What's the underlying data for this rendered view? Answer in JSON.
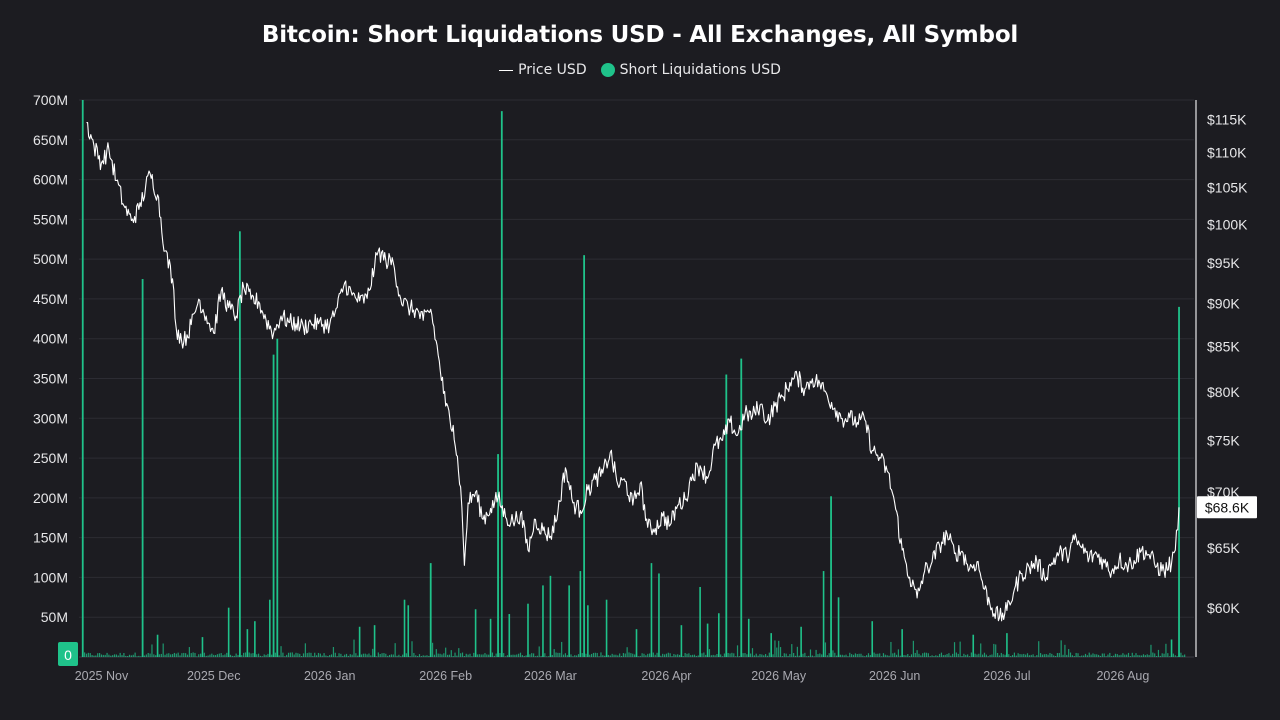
{
  "chart_data": {
    "type": "bar",
    "title": "Bitcoin: Short Liquidations USD - All Exchanges, All Symbol",
    "legend_placement": "top-center",
    "grid": true,
    "legend": [
      {
        "label": "Price USD",
        "marker": "line",
        "color": "#ffffff"
      },
      {
        "label": "Short Liquidations USD",
        "marker": "dot",
        "color": "#1fc28a"
      }
    ],
    "colors": {
      "background": "#1c1c21",
      "grid": "#2c2c33",
      "bars": "#1fc28a",
      "price_line": "#ffffff",
      "current_price_box": "#ffffff",
      "zero_box": "#1fc28a"
    },
    "y_left": {
      "range": [
        0,
        700000000
      ],
      "tick_values": [
        0,
        50000000,
        100000000,
        150000000,
        200000000,
        250000000,
        300000000,
        350000000,
        400000000,
        450000000,
        500000000,
        550000000,
        600000000,
        650000000,
        700000000
      ],
      "tick_labels": [
        "0",
        "50M",
        "100M",
        "150M",
        "200M",
        "250M",
        "300M",
        "350M",
        "400M",
        "450M",
        "500M",
        "550M",
        "600M",
        "650M",
        "700M"
      ]
    },
    "y_right": {
      "scale": "log",
      "range": [
        56200,
        118000
      ],
      "tick_values": [
        60000,
        65000,
        70000,
        75000,
        80000,
        85000,
        90000,
        95000,
        100000,
        105000,
        110000,
        115000
      ],
      "tick_labels": [
        "$60K",
        "$65K",
        "$70K",
        "$75K",
        "$80K",
        "$85K",
        "$90K",
        "$95K",
        "$100K",
        "$105K",
        "$110K",
        "$115K"
      ]
    },
    "current_price_label": "$68.6K",
    "x_axis": {
      "type": "date",
      "range": [
        "2025-10-26",
        "2026-08-20"
      ],
      "ticks": [
        {
          "date": "2025-11-01",
          "label": "2025 Nov"
        },
        {
          "date": "2025-12-01",
          "label": "2025 Dec"
        },
        {
          "date": "2026-01-01",
          "label": "2026 Jan"
        },
        {
          "date": "2026-02-01",
          "label": "2026 Feb"
        },
        {
          "date": "2026-03-01",
          "label": "2026 Mar"
        },
        {
          "date": "2026-04-01",
          "label": "2026 Apr"
        },
        {
          "date": "2026-05-01",
          "label": "2026 May"
        },
        {
          "date": "2026-06-01",
          "label": "2026 Jun"
        },
        {
          "date": "2026-07-01",
          "label": "2026 Jul"
        },
        {
          "date": "2026-08-01",
          "label": "2026 Aug"
        }
      ]
    },
    "price_series": {
      "name": "Price USD",
      "points": [
        [
          "2025-10-28",
          114500
        ],
        [
          "2025-10-30",
          111000
        ],
        [
          "2025-11-01",
          108500
        ],
        [
          "2025-11-03",
          110500
        ],
        [
          "2025-11-05",
          106000
        ],
        [
          "2025-11-07",
          102500
        ],
        [
          "2025-11-09",
          100500
        ],
        [
          "2025-11-11",
          102000
        ],
        [
          "2025-11-14",
          107000
        ],
        [
          "2025-11-16",
          104000
        ],
        [
          "2025-11-18",
          96500
        ],
        [
          "2025-11-20",
          93000
        ],
        [
          "2025-11-21",
          87000
        ],
        [
          "2025-11-23",
          85500
        ],
        [
          "2025-11-25",
          87500
        ],
        [
          "2025-11-27",
          90500
        ],
        [
          "2025-11-29",
          88500
        ],
        [
          "2025-12-01",
          86500
        ],
        [
          "2025-12-03",
          91500
        ],
        [
          "2025-12-05",
          89500
        ],
        [
          "2025-12-07",
          88500
        ],
        [
          "2025-12-09",
          92000
        ],
        [
          "2025-12-11",
          90500
        ],
        [
          "2025-12-13",
          90200
        ],
        [
          "2025-12-15",
          88000
        ],
        [
          "2025-12-17",
          86500
        ],
        [
          "2025-12-19",
          88500
        ],
        [
          "2025-12-21",
          87800
        ],
        [
          "2025-12-23",
          87600
        ],
        [
          "2025-12-25",
          87200
        ],
        [
          "2025-12-27",
          87700
        ],
        [
          "2025-12-29",
          87600
        ],
        [
          "2026-01-01",
          87500
        ],
        [
          "2026-01-03",
          89500
        ],
        [
          "2026-01-05",
          92500
        ],
        [
          "2026-01-07",
          91000
        ],
        [
          "2026-01-09",
          90300
        ],
        [
          "2026-01-11",
          90600
        ],
        [
          "2026-01-13",
          94500
        ],
        [
          "2026-01-14",
          96500
        ],
        [
          "2026-01-16",
          95300
        ],
        [
          "2026-01-18",
          95000
        ],
        [
          "2026-01-20",
          90500
        ],
        [
          "2026-01-22",
          89500
        ],
        [
          "2026-01-24",
          89200
        ],
        [
          "2026-01-26",
          88000
        ],
        [
          "2026-01-28",
          89300
        ],
        [
          "2026-01-30",
          84000
        ],
        [
          "2026-02-01",
          78500
        ],
        [
          "2026-02-03",
          76500
        ],
        [
          "2026-02-05",
          70500
        ],
        [
          "2026-02-06",
          63500
        ],
        [
          "2026-02-07",
          69000
        ],
        [
          "2026-02-09",
          70000
        ],
        [
          "2026-02-11",
          67500
        ],
        [
          "2026-02-13",
          68500
        ],
        [
          "2026-02-15",
          69500
        ],
        [
          "2026-02-17",
          67700
        ],
        [
          "2026-02-19",
          67300
        ],
        [
          "2026-02-21",
          68000
        ],
        [
          "2026-02-23",
          64800
        ],
        [
          "2026-02-25",
          67500
        ],
        [
          "2026-02-27",
          66500
        ],
        [
          "2026-03-01",
          66000
        ],
        [
          "2026-03-03",
          68200
        ],
        [
          "2026-03-05",
          72300
        ],
        [
          "2026-03-07",
          69000
        ],
        [
          "2026-03-09",
          68300
        ],
        [
          "2026-03-11",
          70200
        ],
        [
          "2026-03-13",
          71200
        ],
        [
          "2026-03-15",
          71800
        ],
        [
          "2026-03-17",
          73800
        ],
        [
          "2026-03-19",
          70700
        ],
        [
          "2026-03-21",
          71000
        ],
        [
          "2026-03-23",
          68800
        ],
        [
          "2026-03-25",
          70800
        ],
        [
          "2026-03-27",
          66800
        ],
        [
          "2026-03-29",
          66700
        ],
        [
          "2026-03-31",
          67800
        ],
        [
          "2026-04-02",
          67000
        ],
        [
          "2026-04-04",
          68800
        ],
        [
          "2026-04-06",
          69300
        ],
        [
          "2026-04-08",
          71700
        ],
        [
          "2026-04-10",
          72500
        ],
        [
          "2026-04-12",
          71300
        ],
        [
          "2026-04-14",
          74500
        ],
        [
          "2026-04-16",
          75000
        ],
        [
          "2026-04-18",
          76800
        ],
        [
          "2026-04-20",
          75500
        ],
        [
          "2026-04-22",
          77700
        ],
        [
          "2026-04-24",
          77500
        ],
        [
          "2026-04-26",
          78600
        ],
        [
          "2026-04-28",
          77000
        ],
        [
          "2026-04-30",
          78500
        ],
        [
          "2026-05-02",
          79500
        ],
        [
          "2026-05-04",
          81000
        ],
        [
          "2026-05-06",
          81600
        ],
        [
          "2026-05-08",
          80300
        ],
        [
          "2026-05-10",
          81400
        ],
        [
          "2026-05-12",
          80900
        ],
        [
          "2026-05-14",
          79600
        ],
        [
          "2026-05-16",
          78300
        ],
        [
          "2026-05-18",
          77200
        ],
        [
          "2026-05-20",
          77300
        ],
        [
          "2026-05-22",
          76800
        ],
        [
          "2026-05-24",
          77100
        ],
        [
          "2026-05-26",
          74000
        ],
        [
          "2026-05-28",
          73300
        ],
        [
          "2026-05-30",
          72000
        ],
        [
          "2026-06-01",
          69000
        ],
        [
          "2026-06-03",
          64800
        ],
        [
          "2026-06-05",
          62500
        ],
        [
          "2026-06-07",
          60800
        ],
        [
          "2026-06-09",
          63000
        ],
        [
          "2026-06-11",
          63800
        ],
        [
          "2026-06-13",
          65200
        ],
        [
          "2026-06-15",
          66200
        ],
        [
          "2026-06-17",
          64500
        ],
        [
          "2026-06-19",
          64700
        ],
        [
          "2026-06-21",
          63200
        ],
        [
          "2026-06-23",
          63800
        ],
        [
          "2026-06-25",
          61500
        ],
        [
          "2026-06-27",
          60000
        ],
        [
          "2026-06-29",
          59200
        ],
        [
          "2026-07-01",
          59800
        ],
        [
          "2026-07-03",
          61500
        ],
        [
          "2026-07-05",
          62800
        ],
        [
          "2026-07-07",
          63300
        ],
        [
          "2026-07-09",
          63800
        ],
        [
          "2026-07-11",
          62500
        ],
        [
          "2026-07-13",
          63700
        ],
        [
          "2026-07-15",
          64600
        ],
        [
          "2026-07-17",
          64300
        ],
        [
          "2026-07-19",
          65700
        ],
        [
          "2026-07-21",
          65000
        ],
        [
          "2026-07-23",
          64100
        ],
        [
          "2026-07-25",
          64500
        ],
        [
          "2026-07-27",
          63700
        ],
        [
          "2026-07-29",
          63000
        ],
        [
          "2026-07-31",
          64000
        ],
        [
          "2026-08-02",
          63500
        ],
        [
          "2026-08-04",
          63900
        ],
        [
          "2026-08-06",
          64800
        ],
        [
          "2026-08-08",
          64400
        ],
        [
          "2026-08-10",
          63400
        ],
        [
          "2026-08-12",
          63000
        ],
        [
          "2026-08-14",
          63700
        ],
        [
          "2026-08-15",
          64800
        ],
        [
          "2026-08-16",
          68600
        ]
      ]
    },
    "liquidation_series": {
      "name": "Short Liquidations USD",
      "spikes": [
        [
          "2025-10-27",
          720000000
        ],
        [
          "2025-11-12",
          475000000
        ],
        [
          "2025-12-08",
          535000000
        ],
        [
          "2025-12-17",
          380000000
        ],
        [
          "2025-12-18",
          400000000
        ],
        [
          "2026-01-28",
          118000000
        ],
        [
          "2026-02-15",
          255000000
        ],
        [
          "2026-02-16",
          686000000
        ],
        [
          "2026-03-10",
          505000000
        ],
        [
          "2026-04-17",
          355000000
        ],
        [
          "2026-04-21",
          375000000
        ],
        [
          "2026-05-15",
          202000000
        ],
        [
          "2026-08-16",
          440000000
        ]
      ],
      "medium_bars": [
        [
          "2025-11-16",
          28000000
        ],
        [
          "2025-11-28",
          25000000
        ],
        [
          "2025-12-05",
          62000000
        ],
        [
          "2025-12-10",
          35000000
        ],
        [
          "2025-12-12",
          45000000
        ],
        [
          "2025-12-16",
          72000000
        ],
        [
          "2026-01-09",
          38000000
        ],
        [
          "2026-01-13",
          40000000
        ],
        [
          "2026-01-21",
          72000000
        ],
        [
          "2026-01-22",
          65000000
        ],
        [
          "2026-02-09",
          60000000
        ],
        [
          "2026-02-13",
          48000000
        ],
        [
          "2026-02-18",
          54000000
        ],
        [
          "2026-02-23",
          67000000
        ],
        [
          "2026-02-27",
          90000000
        ],
        [
          "2026-03-01",
          102000000
        ],
        [
          "2026-03-06",
          90000000
        ],
        [
          "2026-03-09",
          108000000
        ],
        [
          "2026-03-11",
          65000000
        ],
        [
          "2026-03-16",
          72000000
        ],
        [
          "2026-03-24",
          35000000
        ],
        [
          "2026-03-28",
          118000000
        ],
        [
          "2026-03-30",
          105000000
        ],
        [
          "2026-04-05",
          40000000
        ],
        [
          "2026-04-10",
          88000000
        ],
        [
          "2026-04-12",
          42000000
        ],
        [
          "2026-04-15",
          55000000
        ],
        [
          "2026-04-23",
          48000000
        ],
        [
          "2026-04-29",
          30000000
        ],
        [
          "2026-05-07",
          38000000
        ],
        [
          "2026-05-13",
          108000000
        ],
        [
          "2026-05-17",
          75000000
        ],
        [
          "2026-05-26",
          45000000
        ],
        [
          "2026-06-03",
          35000000
        ],
        [
          "2026-06-22",
          28000000
        ],
        [
          "2026-07-01",
          30000000
        ],
        [
          "2026-08-14",
          22000000
        ]
      ]
    }
  }
}
